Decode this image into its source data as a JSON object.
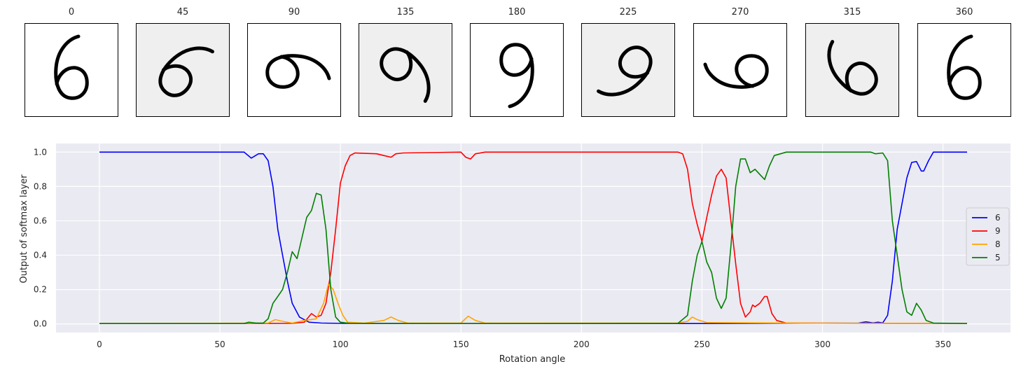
{
  "thumbnails": {
    "labels": [
      "0",
      "45",
      "90",
      "135",
      "180",
      "225",
      "270",
      "315",
      "360"
    ],
    "angles": [
      0,
      45,
      90,
      135,
      180,
      225,
      270,
      315,
      360
    ]
  },
  "chart_data": {
    "type": "line",
    "title": "",
    "xlabel": "Rotation angle",
    "ylabel": "Output of softmax layer",
    "xlim": [
      -18,
      378
    ],
    "ylim": [
      -0.05,
      1.05
    ],
    "xticks": [
      0,
      50,
      100,
      150,
      200,
      250,
      300,
      350
    ],
    "yticks": [
      0.0,
      0.2,
      0.4,
      0.6,
      0.8,
      1.0
    ],
    "ytick_labels": [
      "0.0",
      "0.2",
      "0.4",
      "0.6",
      "0.8",
      "1.0"
    ],
    "grid": true,
    "legend_position": "center-right",
    "background": "#eaeaf2",
    "series": [
      {
        "name": "6",
        "color": "#0000ff",
        "points": [
          [
            0,
            1
          ],
          [
            60,
            1
          ],
          [
            63,
            0.965
          ],
          [
            66,
            0.99
          ],
          [
            68,
            0.99
          ],
          [
            70,
            0.95
          ],
          [
            72,
            0.8
          ],
          [
            74,
            0.55
          ],
          [
            76,
            0.4
          ],
          [
            78,
            0.25
          ],
          [
            80,
            0.12
          ],
          [
            83,
            0.04
          ],
          [
            87,
            0.01
          ],
          [
            92,
            0.005
          ],
          [
            100,
            0.003
          ],
          [
            150,
            0.002
          ],
          [
            250,
            0.002
          ],
          [
            315,
            0.005
          ],
          [
            318,
            0.012
          ],
          [
            321,
            0.006
          ],
          [
            323,
            0.01
          ],
          [
            325,
            0.006
          ],
          [
            327,
            0.05
          ],
          [
            329,
            0.25
          ],
          [
            331,
            0.55
          ],
          [
            333,
            0.7
          ],
          [
            335,
            0.85
          ],
          [
            337,
            0.94
          ],
          [
            339,
            0.945
          ],
          [
            341,
            0.89
          ],
          [
            342,
            0.89
          ],
          [
            344,
            0.95
          ],
          [
            346,
            1
          ],
          [
            360,
            1
          ]
        ]
      },
      {
        "name": "9",
        "color": "#ff0000",
        "points": [
          [
            0,
            0.002
          ],
          [
            80,
            0.003
          ],
          [
            85,
            0.01
          ],
          [
            88,
            0.06
          ],
          [
            90,
            0.04
          ],
          [
            92,
            0.05
          ],
          [
            94,
            0.12
          ],
          [
            96,
            0.3
          ],
          [
            98,
            0.55
          ],
          [
            100,
            0.82
          ],
          [
            102,
            0.92
          ],
          [
            104,
            0.98
          ],
          [
            106,
            0.995
          ],
          [
            115,
            0.99
          ],
          [
            118,
            0.98
          ],
          [
            121,
            0.97
          ],
          [
            123,
            0.99
          ],
          [
            126,
            0.995
          ],
          [
            150,
            1
          ],
          [
            152,
            0.97
          ],
          [
            154,
            0.96
          ],
          [
            156,
            0.99
          ],
          [
            160,
            1
          ],
          [
            240,
            1
          ],
          [
            242,
            0.99
          ],
          [
            244,
            0.9
          ],
          [
            246,
            0.7
          ],
          [
            248,
            0.58
          ],
          [
            250,
            0.48
          ],
          [
            252,
            0.62
          ],
          [
            254,
            0.75
          ],
          [
            256,
            0.86
          ],
          [
            258,
            0.9
          ],
          [
            260,
            0.85
          ],
          [
            262,
            0.6
          ],
          [
            264,
            0.35
          ],
          [
            266,
            0.12
          ],
          [
            268,
            0.04
          ],
          [
            270,
            0.07
          ],
          [
            271,
            0.11
          ],
          [
            272,
            0.1
          ],
          [
            274,
            0.12
          ],
          [
            276,
            0.16
          ],
          [
            277,
            0.16
          ],
          [
            279,
            0.06
          ],
          [
            281,
            0.02
          ],
          [
            285,
            0.005
          ],
          [
            300,
            0.004
          ],
          [
            360,
            0.002
          ]
        ]
      },
      {
        "name": "8",
        "color": "#ffa500",
        "points": [
          [
            0,
            0.002
          ],
          [
            70,
            0.005
          ],
          [
            73,
            0.025
          ],
          [
            76,
            0.015
          ],
          [
            80,
            0.005
          ],
          [
            85,
            0.02
          ],
          [
            90,
            0.03
          ],
          [
            93,
            0.12
          ],
          [
            95,
            0.23
          ],
          [
            97,
            0.2
          ],
          [
            99,
            0.12
          ],
          [
            101,
            0.05
          ],
          [
            103,
            0.01
          ],
          [
            110,
            0.005
          ],
          [
            118,
            0.02
          ],
          [
            121,
            0.04
          ],
          [
            124,
            0.02
          ],
          [
            128,
            0.005
          ],
          [
            150,
            0.005
          ],
          [
            153,
            0.045
          ],
          [
            156,
            0.02
          ],
          [
            160,
            0.005
          ],
          [
            240,
            0.005
          ],
          [
            244,
            0.015
          ],
          [
            246,
            0.04
          ],
          [
            248,
            0.025
          ],
          [
            252,
            0.008
          ],
          [
            300,
            0.004
          ],
          [
            360,
            0.002
          ]
        ]
      },
      {
        "name": "5",
        "color": "#008000",
        "points": [
          [
            0,
            0.002
          ],
          [
            60,
            0.002
          ],
          [
            62,
            0.01
          ],
          [
            65,
            0.005
          ],
          [
            68,
            0.005
          ],
          [
            70,
            0.03
          ],
          [
            72,
            0.12
          ],
          [
            74,
            0.16
          ],
          [
            76,
            0.2
          ],
          [
            78,
            0.3
          ],
          [
            80,
            0.42
          ],
          [
            82,
            0.38
          ],
          [
            84,
            0.5
          ],
          [
            86,
            0.62
          ],
          [
            88,
            0.66
          ],
          [
            90,
            0.76
          ],
          [
            92,
            0.75
          ],
          [
            94,
            0.55
          ],
          [
            96,
            0.2
          ],
          [
            98,
            0.04
          ],
          [
            100,
            0.01
          ],
          [
            104,
            0.003
          ],
          [
            150,
            0.002
          ],
          [
            240,
            0.003
          ],
          [
            244,
            0.05
          ],
          [
            246,
            0.25
          ],
          [
            248,
            0.4
          ],
          [
            250,
            0.48
          ],
          [
            252,
            0.36
          ],
          [
            254,
            0.3
          ],
          [
            256,
            0.15
          ],
          [
            258,
            0.09
          ],
          [
            260,
            0.15
          ],
          [
            262,
            0.45
          ],
          [
            264,
            0.8
          ],
          [
            266,
            0.96
          ],
          [
            268,
            0.96
          ],
          [
            270,
            0.88
          ],
          [
            272,
            0.9
          ],
          [
            274,
            0.87
          ],
          [
            276,
            0.84
          ],
          [
            278,
            0.92
          ],
          [
            280,
            0.98
          ],
          [
            285,
            1
          ],
          [
            320,
            1
          ],
          [
            322,
            0.99
          ],
          [
            325,
            0.995
          ],
          [
            327,
            0.95
          ],
          [
            329,
            0.6
          ],
          [
            331,
            0.4
          ],
          [
            333,
            0.2
          ],
          [
            335,
            0.07
          ],
          [
            337,
            0.05
          ],
          [
            339,
            0.12
          ],
          [
            341,
            0.08
          ],
          [
            343,
            0.02
          ],
          [
            346,
            0.005
          ],
          [
            360,
            0.002
          ]
        ]
      }
    ]
  }
}
